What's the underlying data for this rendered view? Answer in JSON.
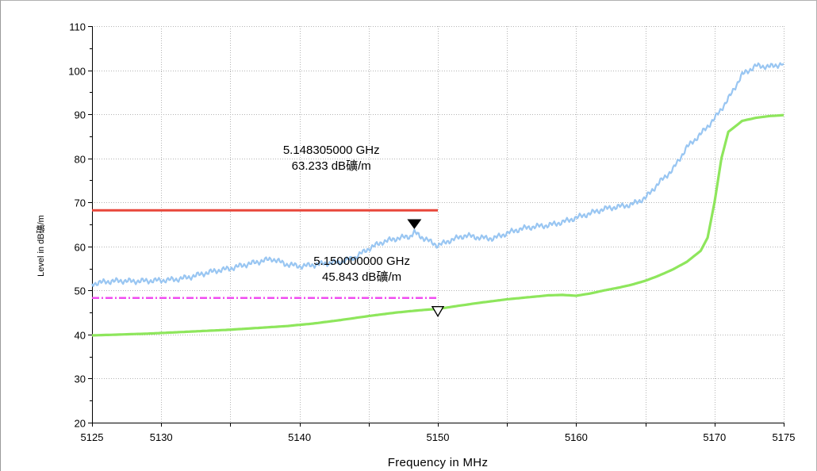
{
  "chart_data": {
    "type": "line",
    "title": "",
    "xlabel": "Frequency in MHz",
    "ylabel": "Level in dBµV/m",
    "ylabel_display": "Level in dB礦/m",
    "xlim": [
      5125,
      5175
    ],
    "ylim": [
      20,
      110
    ],
    "x_ticks": [
      5125,
      5130,
      5140,
      5150,
      5160,
      5170,
      5175
    ],
    "y_ticks": [
      20,
      30,
      40,
      50,
      60,
      70,
      80,
      90,
      100,
      110
    ],
    "grid": true,
    "series": [
      {
        "color": "#99c6f2",
        "x": [
          5125,
          5126,
          5127,
          5128,
          5129,
          5130,
          5131,
          5132,
          5133,
          5134,
          5135,
          5136,
          5137,
          5138,
          5139,
          5140,
          5141,
          5142,
          5143,
          5144,
          5145,
          5146,
          5147,
          5148,
          5148.3,
          5149,
          5150,
          5151,
          5152,
          5153,
          5154,
          5155,
          5156,
          5157,
          5158,
          5159,
          5160,
          5161,
          5162,
          5163,
          5164,
          5165,
          5166,
          5167,
          5168,
          5169,
          5170,
          5171,
          5172,
          5173,
          5174,
          5175
        ],
        "y": [
          51.5,
          52,
          52.2,
          52.1,
          52.2,
          52.3,
          52.5,
          53,
          53.8,
          54.5,
          55,
          55.8,
          56.5,
          57.2,
          56,
          55.5,
          55.8,
          56.2,
          56.5,
          57.5,
          59.5,
          61,
          61.8,
          62.3,
          63.2,
          61.8,
          60.2,
          61.5,
          62.5,
          62,
          61.8,
          63,
          64,
          64.5,
          64.8,
          65.5,
          66.5,
          67.5,
          68.5,
          69,
          69.5,
          71,
          74.5,
          77.5,
          82.5,
          85.5,
          89,
          93.5,
          99,
          101,
          100.8,
          101.5
        ]
      },
      {
        "color": "#8ee65c",
        "x": [
          5125,
          5127,
          5129,
          5131,
          5133,
          5135,
          5137,
          5139,
          5141,
          5143,
          5145,
          5147,
          5149,
          5150,
          5151,
          5153,
          5155,
          5157,
          5158,
          5159,
          5160,
          5161,
          5162,
          5163,
          5164,
          5165,
          5166,
          5167,
          5168,
          5169,
          5169.5,
          5170,
          5170.5,
          5171,
          5172,
          5173,
          5174,
          5175
        ],
        "y": [
          39.8,
          40,
          40.2,
          40.5,
          40.8,
          41.1,
          41.5,
          41.9,
          42.5,
          43.3,
          44.2,
          45,
          45.6,
          45.8,
          46.3,
          47.2,
          48,
          48.6,
          48.9,
          49,
          48.8,
          49.3,
          50,
          50.6,
          51.3,
          52.2,
          53.4,
          54.8,
          56.5,
          59,
          62,
          70,
          80,
          86,
          88.5,
          89.2,
          89.6,
          89.8
        ]
      }
    ],
    "limit_lines": [
      {
        "color": "#e8463a",
        "style": "solid",
        "x": [
          5125,
          5150
        ],
        "y": 68.2
      },
      {
        "color": "#f04cf0",
        "style": "dash-dot",
        "x": [
          5125,
          5150
        ],
        "y": 48.3
      }
    ],
    "markers": [
      {
        "symbol": "filled-triangle",
        "x": 5148.3,
        "y": 63.2,
        "label_line1": "5.148305000 GHz",
        "label_line2": "63.233 dB礦/m"
      },
      {
        "symbol": "open-triangle",
        "x": 5150,
        "y": 45.8,
        "label_line1": "5.150000000 GHz",
        "label_line2": "45.843 dB礦/m"
      }
    ]
  }
}
